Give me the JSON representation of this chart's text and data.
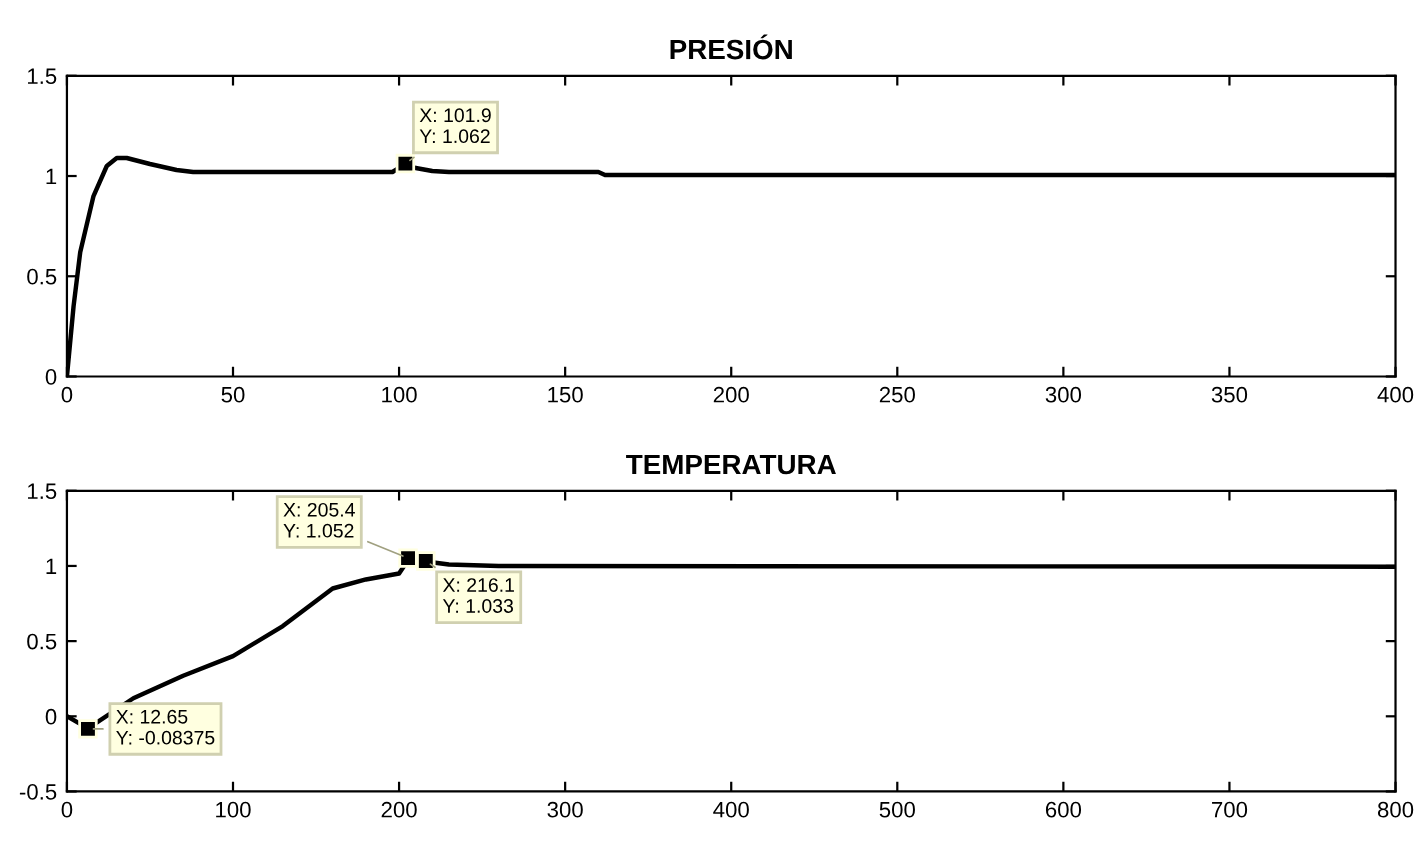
{
  "chart_data": [
    {
      "type": "line",
      "title": "PRESIÓN",
      "series": [
        {
          "color": "#000000",
          "x": [
            0,
            2,
            4,
            8,
            12,
            15,
            18,
            25,
            33,
            38,
            98,
            100,
            101.9,
            105,
            110,
            115,
            160,
            162,
            400
          ],
          "values": [
            0,
            0.35,
            0.62,
            0.9,
            1.05,
            1.09,
            1.09,
            1.06,
            1.03,
            1.02,
            1.02,
            1.04,
            1.06,
            1.04,
            1.025,
            1.02,
            1.02,
            1.005,
            1.005
          ]
        }
      ],
      "xlim": [
        0,
        400
      ],
      "xticks": [
        0,
        50,
        100,
        150,
        200,
        250,
        300,
        350,
        400
      ],
      "ylim": [
        0,
        1.5
      ],
      "yticks": [
        0,
        0.5,
        1,
        1.5
      ],
      "grid": false,
      "legend": false,
      "annotations": [
        {
          "text": "X: 101.9\nY: 1.062",
          "x": 101.9,
          "y": 1.062
        }
      ]
    },
    {
      "type": "line",
      "title": "TEMPERATURA",
      "series": [
        {
          "color": "#000000",
          "x": [
            0,
            12.65,
            40,
            70,
            100,
            130,
            160,
            180,
            200,
            203,
            205.4,
            210,
            216.1,
            230,
            260,
            800
          ],
          "values": [
            0,
            -0.08,
            0.12,
            0.27,
            0.4,
            0.6,
            0.85,
            0.91,
            0.95,
            1.0,
            1.05,
            1.04,
            1.03,
            1.01,
            1.0,
            0.995
          ]
        }
      ],
      "xlim": [
        0,
        800
      ],
      "xticks": [
        0,
        100,
        200,
        300,
        400,
        500,
        600,
        700,
        800
      ],
      "ylim": [
        -0.5,
        1.5
      ],
      "yticks": [
        -0.5,
        0,
        0.5,
        1,
        1.5
      ],
      "grid": false,
      "legend": false,
      "annotations": [
        {
          "text": "X: 205.4\nY: 1.052",
          "x": 205.4,
          "y": 1.052
        },
        {
          "text": "X: 216.1\nY: 1.033",
          "x": 216.1,
          "y": 1.033
        },
        {
          "text": "X: 12.65\nY: -0.08375",
          "x": 12.65,
          "y": -0.08375
        }
      ]
    }
  ]
}
